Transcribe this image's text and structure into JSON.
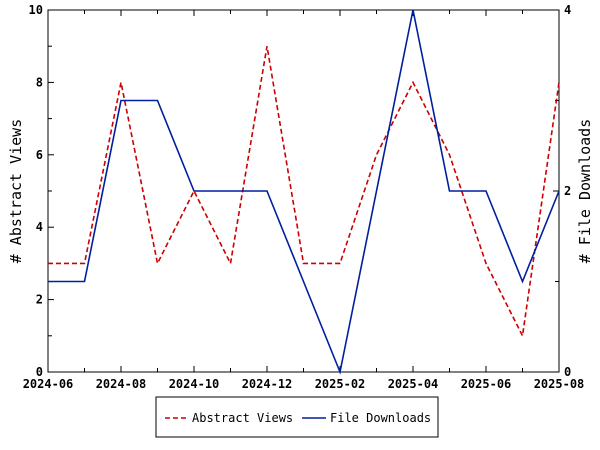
{
  "chart_data": {
    "type": "line",
    "title": "",
    "xlabel": "",
    "x": [
      "2024-06",
      "2024-07",
      "2024-08",
      "2024-09",
      "2024-10",
      "2024-11",
      "2024-12",
      "2025-01",
      "2025-02",
      "2025-03",
      "2025-04",
      "2025-05",
      "2025-06",
      "2025-07",
      "2025-08"
    ],
    "x_ticks": [
      "2024-06",
      "2024-08",
      "2024-10",
      "2024-12",
      "2025-02",
      "2025-04",
      "2025-06",
      "2025-08"
    ],
    "y_left": {
      "label": "# Abstract Views",
      "lim": [
        0,
        10
      ],
      "ticks": [
        "0",
        "2",
        "4",
        "6",
        "8",
        "10"
      ]
    },
    "y_right": {
      "label": "# File Downloads",
      "lim": [
        0,
        4
      ],
      "ticks": [
        "0",
        "2",
        "4"
      ]
    },
    "grid": false,
    "legend_position": "bottom-center",
    "series": [
      {
        "name": "Abstract Views",
        "axis": "left",
        "color": "#cc0000",
        "dash": "dashed",
        "values": [
          3,
          3,
          8,
          3,
          5,
          3,
          9,
          3,
          3,
          6,
          8,
          6,
          3,
          1,
          8
        ]
      },
      {
        "name": "File Downloads",
        "axis": "right",
        "color": "#001f9e",
        "dash": "solid",
        "values": [
          1,
          1,
          3,
          3,
          2,
          2,
          2,
          1,
          0,
          2,
          4,
          2,
          2,
          1,
          2
        ]
      }
    ]
  }
}
